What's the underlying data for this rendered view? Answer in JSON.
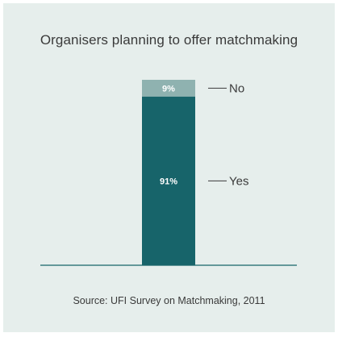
{
  "chart_data": {
    "type": "bar",
    "stacked": true,
    "title": "Organisers planning to offer matchmaking",
    "xlabel": "",
    "ylabel": "",
    "ylim": [
      0,
      100
    ],
    "categories": [
      ""
    ],
    "series": [
      {
        "name": "Yes",
        "values": [
          91
        ],
        "label": "91%",
        "color": "#17646a"
      },
      {
        "name": "No",
        "values": [
          9
        ],
        "label": "9%",
        "color": "#8fb2b0"
      }
    ],
    "legend": "right of bar",
    "grid": false
  },
  "source": "Source: UFI Survey on Matchmaking, 2011"
}
